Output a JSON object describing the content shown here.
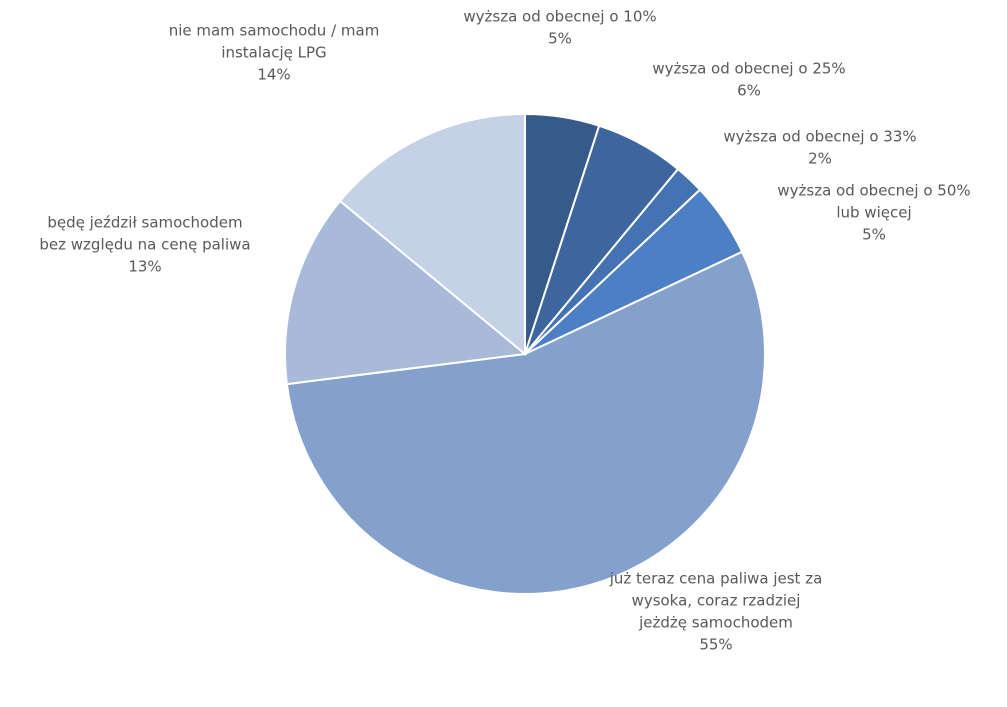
{
  "chart_data": {
    "type": "pie",
    "title": "",
    "slices": [
      {
        "lines": [
          "wyższa od obecnej o 10%"
        ],
        "label": "wyższa od obecnej o 10%",
        "value": 5,
        "percent": "5%",
        "color": "#365a8a"
      },
      {
        "lines": [
          "wyższa od obecnej o 25%"
        ],
        "label": "wyższa od obecnej o 25%",
        "value": 6,
        "percent": "6%",
        "color": "#3d659e"
      },
      {
        "lines": [
          "wyższa od obecnej o 33%"
        ],
        "label": "wyższa od obecnej o 33%",
        "value": 2,
        "percent": "2%",
        "color": "#4472b3"
      },
      {
        "lines": [
          "wyższa od obecnej o 50%",
          "lub więcej"
        ],
        "label": "wyższa od obecnej o 50% lub więcej",
        "value": 5,
        "percent": "5%",
        "color": "#4c7fc3"
      },
      {
        "lines": [
          "już teraz cena paliwa jest za",
          "wysoka, coraz rzadziej",
          "jeżdżę samochodem"
        ],
        "label": "już teraz cena paliwa jest za wysoka, coraz rzadziej jeżdżę samochodem",
        "value": 55,
        "percent": "55%",
        "color": "#84a0cd"
      },
      {
        "lines": [
          "będę jeździł samochodem",
          "bez względu na cenę paliwa"
        ],
        "label": "będę jeździł samochodem bez względu na cenę paliwa",
        "value": 13,
        "percent": "13%",
        "color": "#a9b9d9"
      },
      {
        "lines": [
          "nie mam samochodu / mam",
          "instalację LPG"
        ],
        "label": "nie mam samochodu / mam instalację LPG",
        "value": 14,
        "percent": "14%",
        "color": "#c5d1e6"
      }
    ]
  }
}
